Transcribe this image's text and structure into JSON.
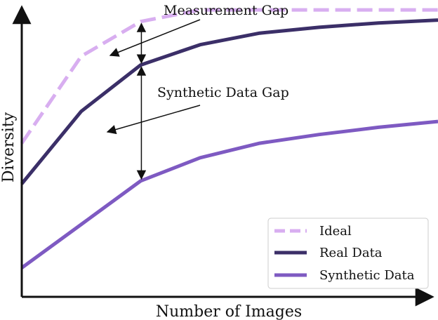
{
  "chart_data": {
    "type": "line",
    "xlabel": "Number of Images",
    "ylabel": "Diversity",
    "x": [
      0,
      1,
      2,
      3,
      4,
      5,
      6,
      7
    ],
    "series": [
      {
        "name": "Ideal",
        "values": [
          0.53,
          0.83,
          0.95,
          0.99,
          0.99,
          0.99,
          0.99,
          0.99
        ],
        "color": "#d8aef0",
        "dash": true
      },
      {
        "name": "Real Data",
        "values": [
          0.39,
          0.64,
          0.8,
          0.87,
          0.91,
          0.93,
          0.945,
          0.955
        ],
        "color": "#3b2f68",
        "dash": false
      },
      {
        "name": "Synthetic Data",
        "values": [
          0.1,
          0.25,
          0.4,
          0.48,
          0.53,
          0.56,
          0.585,
          0.605
        ],
        "color": "#7e5ac2",
        "dash": false
      }
    ],
    "annotations": [
      {
        "text": "Measurement Gap",
        "x": 2,
        "from_series": "Ideal",
        "to_series": "Real Data"
      },
      {
        "text": "Synthetic Data Gap",
        "x": 2,
        "from_series": "Real Data",
        "to_series": "Synthetic Data"
      }
    ],
    "legend": "bottom-right",
    "grid": false
  }
}
